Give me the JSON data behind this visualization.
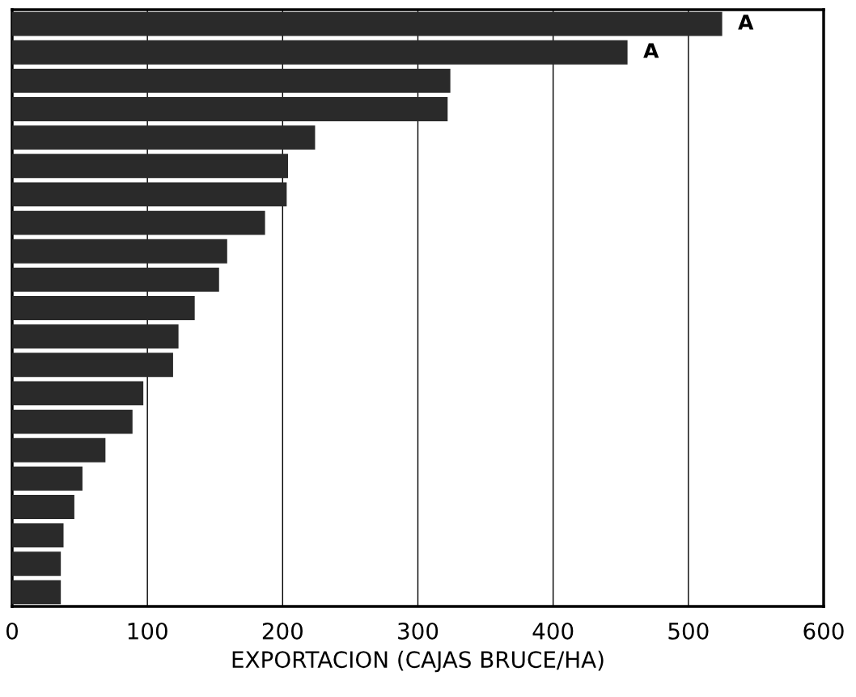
{
  "chart_data": {
    "type": "bar",
    "orientation": "horizontal",
    "xlabel": "EXPORTACION (CAJAS BRUCE/HA)",
    "categories": [
      null,
      null,
      null,
      null,
      null,
      null,
      null,
      null,
      null,
      null,
      null,
      null,
      null,
      null,
      null,
      null,
      null,
      null,
      null,
      null,
      null
    ],
    "values": [
      525,
      455,
      324,
      322,
      224,
      204,
      203,
      187,
      159,
      153,
      135,
      123,
      119,
      97,
      89,
      69,
      52,
      46,
      38,
      36,
      36
    ],
    "color": "#2a2a2a",
    "xlim": [
      0,
      600
    ],
    "xticks": [
      0,
      100,
      200,
      300,
      400,
      500,
      600
    ],
    "grid": "x",
    "annotations": [
      {
        "text": "A",
        "x": 525
      },
      {
        "text": "A",
        "x": 455
      }
    ]
  }
}
